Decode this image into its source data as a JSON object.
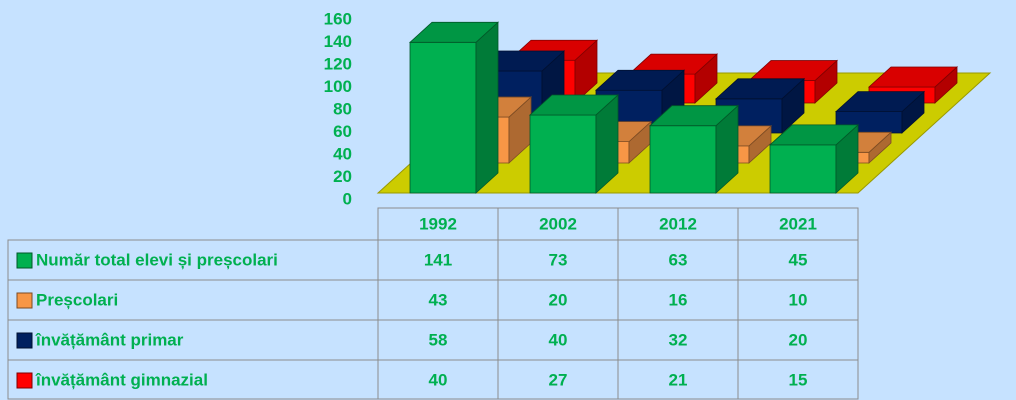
{
  "chart_data": {
    "type": "bar3d",
    "categories": [
      "1992",
      "2002",
      "2012",
      "2021"
    ],
    "series": [
      {
        "name": "Număr total elevi și preșcolari",
        "color": "#00b050",
        "values": [
          141,
          73,
          63,
          45
        ]
      },
      {
        "name": "Preșcolari",
        "color": "#f79646",
        "values": [
          43,
          20,
          16,
          10
        ]
      },
      {
        "name": "învățământ primar",
        "color": "#002060",
        "values": [
          58,
          40,
          32,
          20
        ]
      },
      {
        "name": "învățământ gimnazial",
        "color": "#ff0000",
        "values": [
          40,
          27,
          21,
          15
        ]
      }
    ],
    "ylim": [
      0,
      160
    ],
    "yticks": [
      0,
      20,
      40,
      60,
      80,
      100,
      120,
      140,
      160
    ]
  }
}
